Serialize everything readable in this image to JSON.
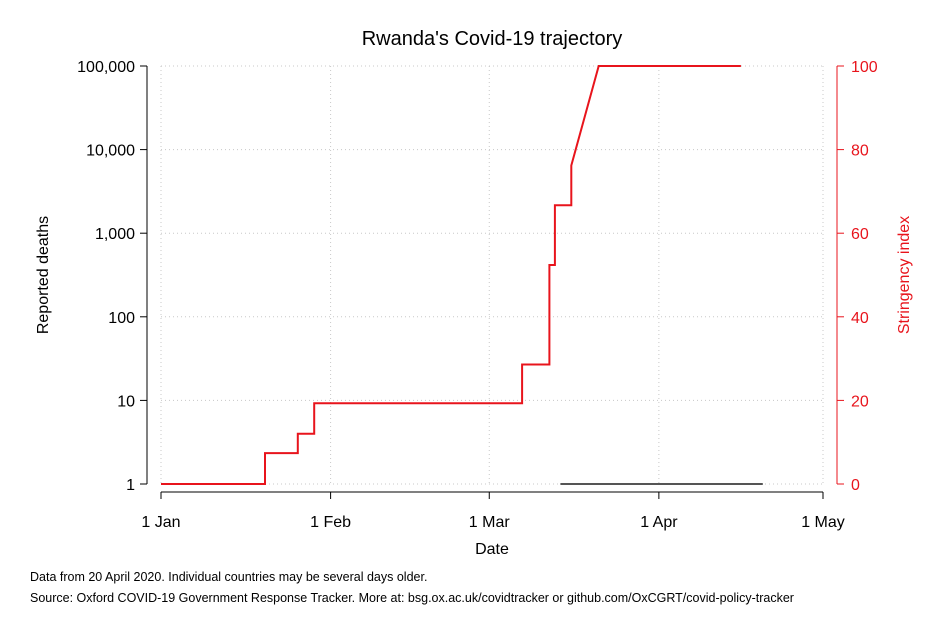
{
  "chart_data": {
    "type": "line",
    "title": "Rwanda's Covid-19 trajectory",
    "xlabel": "Date",
    "ylabel_left": "Reported deaths",
    "ylabel_right": "Stringency index",
    "x_ticks": [
      "1 Jan",
      "1 Feb",
      "1 Mar",
      "1 Apr",
      "1 May"
    ],
    "y_left_ticks": [
      "1",
      "10",
      "100",
      "1,000",
      "10,000",
      "100,000"
    ],
    "y_right_ticks": [
      "0",
      "20",
      "40",
      "60",
      "80",
      "100"
    ],
    "y_left_scale": "log",
    "y_left_range": [
      1,
      100000
    ],
    "y_right_range": [
      0,
      100
    ],
    "x_range": [
      "2020-01-01",
      "2020-05-01"
    ],
    "grid": true,
    "colors": {
      "stringency": "#e8141c",
      "deaths": "#555555",
      "right_axis": "#e8141c"
    },
    "series": [
      {
        "axis": "right",
        "points": [
          [
            "2020-01-01",
            0
          ],
          [
            "2020-01-20",
            0
          ],
          [
            "2020-01-20",
            7.4
          ],
          [
            "2020-01-26",
            7.4
          ],
          [
            "2020-01-26",
            12
          ],
          [
            "2020-01-29",
            12
          ],
          [
            "2020-01-29",
            19.3
          ],
          [
            "2020-03-07",
            19.3
          ],
          [
            "2020-03-07",
            28.6
          ],
          [
            "2020-03-12",
            28.6
          ],
          [
            "2020-03-12",
            52.4
          ],
          [
            "2020-03-13",
            52.4
          ],
          [
            "2020-03-13",
            66.7
          ],
          [
            "2020-03-16",
            66.7
          ],
          [
            "2020-03-16",
            76.2
          ],
          [
            "2020-03-21",
            100
          ],
          [
            "2020-04-16",
            100
          ]
        ]
      },
      {
        "axis": "left",
        "points": [
          [
            "2020-03-14",
            1
          ],
          [
            "2020-04-20",
            1
          ]
        ]
      }
    ]
  },
  "notes": {
    "line1": "Data from 20 April 2020. Individual countries may be several days older.",
    "line2": "Source: Oxford COVID-19 Government Response Tracker. More at: bsg.ox.ac.uk/covidtracker or github.com/OxCGRT/covid-policy-tracker"
  }
}
